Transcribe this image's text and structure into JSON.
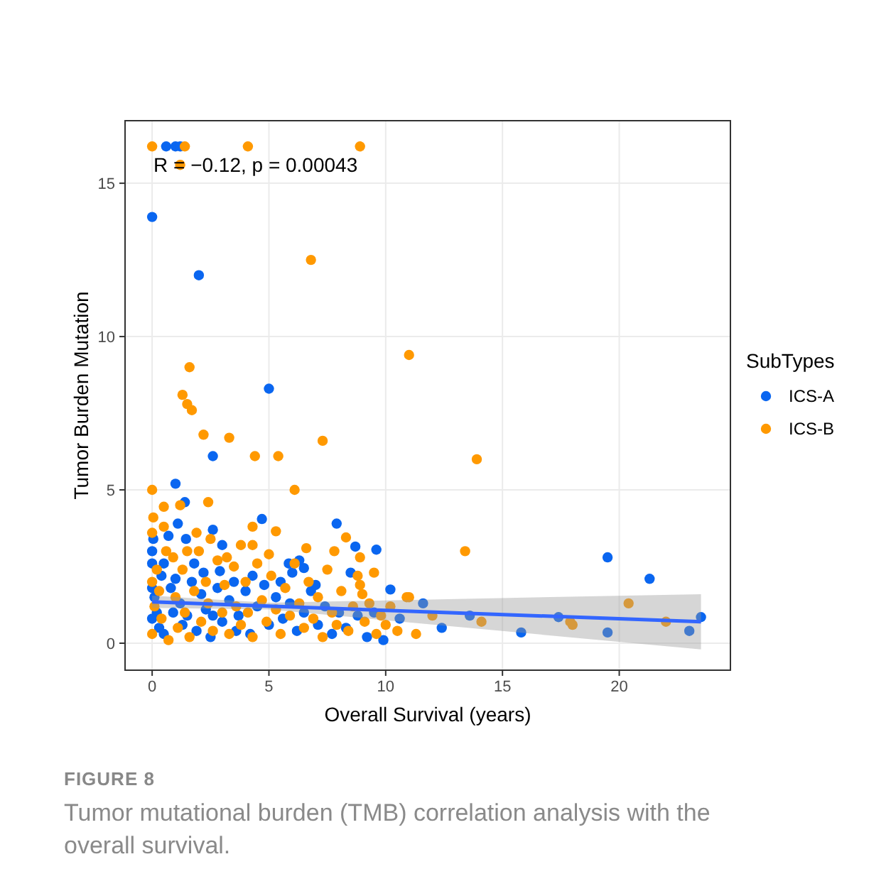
{
  "chart_data": {
    "type": "scatter",
    "xlabel": "Overall Survival (years)",
    "ylabel": "Tumor Burden Mutation",
    "legend_title": "SubTypes",
    "annotations": [
      "R = −0.12, p = 0.00043",
      "FIGURE 8",
      "Tumor mutational burden (TMB) correlation analysis with the overall survival."
    ],
    "xlim": [
      -1.16,
      24.76
    ],
    "ylim": [
      -0.88,
      17.04
    ],
    "xticks": [
      0,
      5,
      10,
      15,
      20
    ],
    "yticks": [
      0,
      5,
      10,
      15
    ],
    "grid": true,
    "legend": "right",
    "marker": "circle",
    "series": [
      {
        "name": "ICS-B",
        "color": "#ff9900",
        "x": [
          0,
          1.4,
          4.1,
          8.9,
          1.2,
          6.8,
          11.0,
          13.9,
          1.6,
          1.3,
          1.5,
          1.7,
          2.2,
          3.3,
          4.4,
          5.4,
          7.3,
          6.1,
          0.0,
          13.4,
          14.1,
          17.9,
          20.4,
          22.0,
          18.0,
          11.0,
          12.0,
          2.4,
          0.5,
          0.05,
          4.3,
          5.3,
          3.8,
          4.3,
          1.9,
          8.3,
          8.8,
          9.5,
          10.9,
          0.0,
          0.1,
          0.2,
          0.3,
          0.4,
          0.6,
          0.7,
          0.9,
          1.0,
          1.1,
          1.3,
          1.4,
          1.6,
          1.8,
          2.0,
          2.1,
          2.3,
          2.4,
          2.6,
          2.8,
          3.0,
          3.1,
          3.3,
          3.5,
          3.6,
          3.8,
          4.0,
          4.1,
          4.3,
          4.5,
          4.7,
          4.9,
          5.1,
          5.3,
          5.5,
          5.7,
          5.9,
          6.1,
          6.3,
          6.5,
          6.7,
          6.9,
          7.1,
          7.3,
          7.5,
          7.7,
          7.9,
          8.1,
          8.4,
          8.6,
          8.9,
          9.1,
          9.3,
          9.6,
          9.8,
          10.2,
          10.5,
          11.3,
          0.0,
          0.0,
          0.5,
          1.2,
          1.5,
          2.5,
          3.2,
          5.0,
          6.6,
          7.8,
          8.9,
          9.0,
          10.0
        ],
        "values": [
          16.2,
          16.2,
          16.2,
          16.2,
          15.6,
          12.5,
          9.4,
          6.0,
          9.0,
          8.1,
          7.8,
          7.6,
          6.8,
          6.7,
          6.1,
          6.1,
          6.6,
          5.0,
          5.0,
          3.0,
          0.7,
          0.7,
          1.3,
          0.7,
          0.6,
          1.5,
          0.9,
          4.6,
          4.45,
          4.1,
          3.8,
          3.65,
          3.2,
          3.2,
          3.6,
          3.45,
          2.2,
          2.3,
          1.5,
          0.3,
          1.2,
          2.4,
          1.7,
          0.8,
          3.0,
          0.1,
          2.8,
          1.5,
          0.5,
          2.4,
          1.0,
          0.2,
          1.7,
          3.0,
          0.7,
          2.0,
          1.3,
          0.4,
          2.7,
          1.0,
          1.9,
          0.3,
          2.5,
          1.2,
          0.6,
          2.0,
          1.0,
          0.2,
          2.6,
          1.4,
          0.7,
          2.2,
          1.1,
          0.3,
          1.8,
          0.9,
          2.6,
          1.3,
          0.5,
          2.0,
          0.8,
          1.5,
          0.2,
          2.4,
          1.0,
          0.6,
          1.7,
          0.4,
          1.2,
          1.9,
          0.7,
          1.3,
          0.3,
          0.9,
          1.2,
          0.4,
          0.3,
          3.6,
          2.0,
          3.8,
          4.5,
          3.0,
          3.4,
          2.8,
          2.9,
          3.1,
          3.0,
          2.8,
          1.6,
          0.6
        ]
      },
      {
        "name": "ICS-A",
        "color": "#0a66f0",
        "x": [
          0,
          2.0,
          5.0,
          0.6,
          1.0,
          1.2,
          2.6,
          7.9,
          4.7,
          2.6,
          1.1,
          0.7,
          0.05,
          3.0,
          1.45,
          9.6,
          8.7,
          5.85,
          6.5,
          6.3,
          8.5,
          10.2,
          2.9,
          0.5,
          1.0,
          1.4,
          0.0,
          0.1,
          0.2,
          0.3,
          0.5,
          0.8,
          1.0,
          1.2,
          1.5,
          1.7,
          1.9,
          2.1,
          2.3,
          2.5,
          2.8,
          3.0,
          3.3,
          3.5,
          3.7,
          4.0,
          4.2,
          4.5,
          4.8,
          5.0,
          5.3,
          5.6,
          5.9,
          6.2,
          6.5,
          6.8,
          7.1,
          7.4,
          7.7,
          8.0,
          8.3,
          8.8,
          9.2,
          9.5,
          9.9,
          10.6,
          11.6,
          12.4,
          13.6,
          15.8,
          17.4,
          19.5,
          19.5,
          21.3,
          23.0,
          23.5,
          0.4,
          0.9,
          1.3,
          1.8,
          2.2,
          2.6,
          3.6,
          4.3,
          5.5,
          6.0,
          7.0,
          0.0,
          0.0,
          0.0
        ],
        "values": [
          13.9,
          12.0,
          8.3,
          16.2,
          16.2,
          16.2,
          6.1,
          3.9,
          4.05,
          3.7,
          3.9,
          3.5,
          3.4,
          3.2,
          3.4,
          3.05,
          3.15,
          2.6,
          2.45,
          2.7,
          2.3,
          1.75,
          2.35,
          2.6,
          5.2,
          4.6,
          1.8,
          1.5,
          1.0,
          0.5,
          0.3,
          1.8,
          2.1,
          1.3,
          0.9,
          2.0,
          0.4,
          1.6,
          1.1,
          0.2,
          1.8,
          0.7,
          1.4,
          2.0,
          0.9,
          1.7,
          0.3,
          1.2,
          1.9,
          0.6,
          1.5,
          0.8,
          1.3,
          0.4,
          1.0,
          1.7,
          0.6,
          1.2,
          0.3,
          1.0,
          0.5,
          0.9,
          0.2,
          1.0,
          0.1,
          0.8,
          1.3,
          0.5,
          0.9,
          0.35,
          0.85,
          2.8,
          0.35,
          2.1,
          0.4,
          0.85,
          2.2,
          1.0,
          0.6,
          2.6,
          2.3,
          0.9,
          0.4,
          2.2,
          2.0,
          2.3,
          1.9,
          0.8,
          2.6,
          3.0
        ]
      },
      {
        "type": "line",
        "marker": "none",
        "color": "#3366ff",
        "x": [
          0,
          5,
          23.5
        ],
        "values": [
          1.35,
          1.21,
          0.7
        ],
        "lower": [
          1.15,
          1.1,
          -0.2
        ],
        "upper": [
          1.55,
          1.32,
          1.6
        ]
      }
    ]
  }
}
